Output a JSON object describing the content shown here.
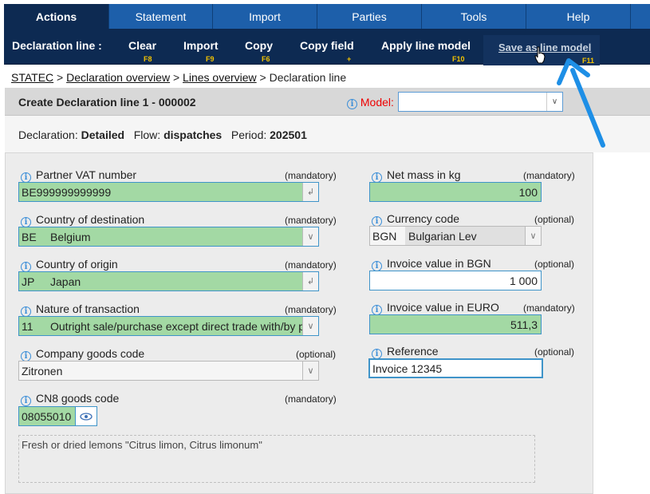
{
  "menubar": {
    "items": [
      "Actions",
      "Statement",
      "Import",
      "Parties",
      "Tools",
      "Help"
    ]
  },
  "toolbar": {
    "section_label": "Declaration line :",
    "buttons": [
      {
        "label": "Clear",
        "key": "F8"
      },
      {
        "label": "Import",
        "key": "F9"
      },
      {
        "label": "Copy",
        "key": "F6"
      },
      {
        "label": "Copy field",
        "key": "+"
      },
      {
        "label": "Apply line model",
        "key": "F10"
      },
      {
        "label": "Save as line model",
        "key": "F11"
      }
    ]
  },
  "breadcrumb": {
    "items": [
      "STATEC",
      "Declaration overview",
      "Lines overview"
    ],
    "separator": ">",
    "current": "Declaration line"
  },
  "header": {
    "title": "Create Declaration line 1 - 000002",
    "model_label": "Model:",
    "model_value": ""
  },
  "summary": {
    "declaration_label": "Declaration:",
    "declaration_value": "Detailed",
    "flow_label": "Flow:",
    "flow_value": "dispatches",
    "period_label": "Period:",
    "period_value": "202501"
  },
  "left_fields": {
    "partner_vat": {
      "label": "Partner VAT number",
      "req": "(mandatory)",
      "value": "BE999999999999"
    },
    "country_destination": {
      "label": "Country of destination",
      "req": "(mandatory)",
      "code": "BE",
      "desc": "Belgium"
    },
    "country_origin": {
      "label": "Country of origin",
      "req": "(mandatory)",
      "code": "JP",
      "desc": "Japan"
    },
    "nature_transaction": {
      "label": "Nature of transaction",
      "req": "(mandatory)",
      "code": "11",
      "desc": "Outright sale/purchase except direct trade with/by p"
    },
    "company_goods": {
      "label": "Company goods code",
      "req": "(optional)",
      "value": "Zitronen"
    },
    "cn8": {
      "label": "CN8 goods code",
      "req": "(mandatory)",
      "value": "08055010"
    }
  },
  "right_fields": {
    "net_mass": {
      "label": "Net mass in kg",
      "req": "(mandatory)",
      "value": "100"
    },
    "currency": {
      "label": "Currency code",
      "req": "(optional)",
      "code": "BGN",
      "desc": "Bulgarian Lev"
    },
    "invoice_bgn": {
      "label": "Invoice value in BGN",
      "req": "(optional)",
      "value": "1 000"
    },
    "invoice_euro": {
      "label": "Invoice value in EURO",
      "req": "(mandatory)",
      "value": "511,3"
    },
    "reference": {
      "label": "Reference",
      "req": "(optional)",
      "value": "Invoice 12345"
    }
  },
  "goods_description": "Fresh or dried lemons \"Citrus limon, Citrus limonum\"",
  "colors": {
    "menubar": "#1d5faa",
    "toolbar": "#0d2a52",
    "function_key": "#f3c300",
    "mandatory_fill": "#a3d9a4",
    "field_border": "#3f94c9",
    "model_label": "#e00000",
    "annotation_arrow": "#1e8fe6"
  }
}
